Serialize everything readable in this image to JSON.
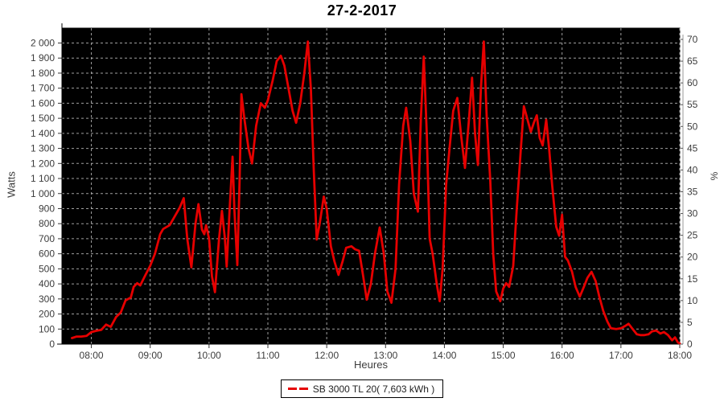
{
  "title": "27-2-2017",
  "legend": {
    "label": "SB 3000 TL 20( 7,603 kWh )",
    "marker_color": "#e60000"
  },
  "colors": {
    "page_background": "#ffffff",
    "plot_background": "#000000",
    "grid": "#bdbdbd",
    "series_line": "#e60000",
    "axis_text": "#3c3c3c",
    "axis_line": "#000000"
  },
  "chart_data": {
    "type": "line",
    "title": "27-2-2017",
    "xlabel": "Heures",
    "ylabel": "Watts",
    "y2label": "%",
    "grid": true,
    "legend_position": "bottom",
    "x_range": [
      7.5,
      18
    ],
    "y_range": [
      0,
      2000
    ],
    "y2_range": [
      0,
      70
    ],
    "x_tick_values": [
      8,
      9,
      10,
      11,
      12,
      13,
      14,
      15,
      16,
      17,
      18
    ],
    "x_ticks": [
      "08:00",
      "09:00",
      "10:00",
      "11:00",
      "12:00",
      "13:00",
      "14:00",
      "15:00",
      "16:00",
      "17:00",
      "18:00"
    ],
    "y_ticks": [
      "0",
      "100",
      "200",
      "300",
      "400",
      "500",
      "600",
      "700",
      "800",
      "900",
      "1 000",
      "1 100",
      "1 200",
      "1 300",
      "1 400",
      "1 500",
      "1 600",
      "1 700",
      "1 800",
      "1 900",
      "2 000"
    ],
    "y2_ticks": [
      "0",
      "5",
      "10",
      "15",
      "20",
      "25",
      "30",
      "35",
      "40",
      "45",
      "50",
      "55",
      "60",
      "65",
      "70"
    ],
    "series": [
      {
        "name": "SB 3000 TL 20",
        "energy_label": "7,603 kWh",
        "color": "#e60000",
        "points": [
          [
            7.67,
            40
          ],
          [
            7.75,
            50
          ],
          [
            7.83,
            50
          ],
          [
            7.92,
            55
          ],
          [
            8.0,
            80
          ],
          [
            8.08,
            88
          ],
          [
            8.17,
            95
          ],
          [
            8.25,
            130
          ],
          [
            8.33,
            115
          ],
          [
            8.42,
            180
          ],
          [
            8.5,
            210
          ],
          [
            8.58,
            290
          ],
          [
            8.67,
            310
          ],
          [
            8.72,
            380
          ],
          [
            8.78,
            405
          ],
          [
            8.83,
            390
          ],
          [
            8.92,
            460
          ],
          [
            9.0,
            520
          ],
          [
            9.08,
            600
          ],
          [
            9.17,
            730
          ],
          [
            9.22,
            765
          ],
          [
            9.33,
            790
          ],
          [
            9.42,
            850
          ],
          [
            9.5,
            905
          ],
          [
            9.57,
            970
          ],
          [
            9.63,
            700
          ],
          [
            9.7,
            510
          ],
          [
            9.77,
            800
          ],
          [
            9.82,
            930
          ],
          [
            9.88,
            760
          ],
          [
            9.92,
            730
          ],
          [
            9.95,
            790
          ],
          [
            10.0,
            700
          ],
          [
            10.05,
            450
          ],
          [
            10.1,
            345
          ],
          [
            10.17,
            700
          ],
          [
            10.22,
            885
          ],
          [
            10.27,
            700
          ],
          [
            10.3,
            515
          ],
          [
            10.35,
            900
          ],
          [
            10.4,
            1245
          ],
          [
            10.43,
            900
          ],
          [
            10.48,
            525
          ],
          [
            10.52,
            1100
          ],
          [
            10.55,
            1660
          ],
          [
            10.6,
            1500
          ],
          [
            10.67,
            1300
          ],
          [
            10.73,
            1200
          ],
          [
            10.8,
            1450
          ],
          [
            10.88,
            1600
          ],
          [
            10.95,
            1570
          ],
          [
            11.0,
            1620
          ],
          [
            11.08,
            1750
          ],
          [
            11.15,
            1880
          ],
          [
            11.22,
            1915
          ],
          [
            11.28,
            1850
          ],
          [
            11.35,
            1700
          ],
          [
            11.42,
            1550
          ],
          [
            11.48,
            1470
          ],
          [
            11.55,
            1600
          ],
          [
            11.62,
            1800
          ],
          [
            11.68,
            2010
          ],
          [
            11.73,
            1700
          ],
          [
            11.78,
            1150
          ],
          [
            11.83,
            695
          ],
          [
            11.88,
            800
          ],
          [
            11.95,
            980
          ],
          [
            12.0,
            900
          ],
          [
            12.07,
            650
          ],
          [
            12.13,
            550
          ],
          [
            12.2,
            460
          ],
          [
            12.27,
            550
          ],
          [
            12.33,
            640
          ],
          [
            12.42,
            650
          ],
          [
            12.48,
            630
          ],
          [
            12.55,
            620
          ],
          [
            12.62,
            450
          ],
          [
            12.68,
            295
          ],
          [
            12.75,
            400
          ],
          [
            12.82,
            600
          ],
          [
            12.9,
            775
          ],
          [
            12.97,
            600
          ],
          [
            13.03,
            350
          ],
          [
            13.1,
            275
          ],
          [
            13.17,
            500
          ],
          [
            13.23,
            1060
          ],
          [
            13.3,
            1450
          ],
          [
            13.35,
            1570
          ],
          [
            13.42,
            1350
          ],
          [
            13.48,
            1000
          ],
          [
            13.55,
            880
          ],
          [
            13.6,
            1500
          ],
          [
            13.65,
            1910
          ],
          [
            13.7,
            1400
          ],
          [
            13.75,
            700
          ],
          [
            13.8,
            600
          ],
          [
            13.87,
            400
          ],
          [
            13.92,
            285
          ],
          [
            13.97,
            500
          ],
          [
            14.03,
            1060
          ],
          [
            14.1,
            1350
          ],
          [
            14.15,
            1550
          ],
          [
            14.22,
            1635
          ],
          [
            14.28,
            1400
          ],
          [
            14.35,
            1170
          ],
          [
            14.42,
            1500
          ],
          [
            14.47,
            1770
          ],
          [
            14.52,
            1400
          ],
          [
            14.57,
            1190
          ],
          [
            14.62,
            1700
          ],
          [
            14.67,
            2010
          ],
          [
            14.72,
            1500
          ],
          [
            14.78,
            1080
          ],
          [
            14.83,
            600
          ],
          [
            14.88,
            350
          ],
          [
            14.95,
            285
          ],
          [
            15.0,
            370
          ],
          [
            15.05,
            405
          ],
          [
            15.1,
            380
          ],
          [
            15.17,
            520
          ],
          [
            15.23,
            900
          ],
          [
            15.3,
            1300
          ],
          [
            15.35,
            1580
          ],
          [
            15.42,
            1480
          ],
          [
            15.47,
            1410
          ],
          [
            15.52,
            1470
          ],
          [
            15.57,
            1520
          ],
          [
            15.62,
            1370
          ],
          [
            15.67,
            1320
          ],
          [
            15.73,
            1490
          ],
          [
            15.78,
            1300
          ],
          [
            15.83,
            1060
          ],
          [
            15.9,
            780
          ],
          [
            15.95,
            720
          ],
          [
            16.0,
            860
          ],
          [
            16.05,
            580
          ],
          [
            16.1,
            555
          ],
          [
            16.17,
            480
          ],
          [
            16.23,
            380
          ],
          [
            16.3,
            315
          ],
          [
            16.37,
            380
          ],
          [
            16.43,
            440
          ],
          [
            16.5,
            480
          ],
          [
            16.57,
            420
          ],
          [
            16.63,
            320
          ],
          [
            16.7,
            220
          ],
          [
            16.77,
            150
          ],
          [
            16.83,
            105
          ],
          [
            16.92,
            100
          ],
          [
            17.0,
            105
          ],
          [
            17.07,
            120
          ],
          [
            17.13,
            135
          ],
          [
            17.2,
            100
          ],
          [
            17.27,
            65
          ],
          [
            17.33,
            60
          ],
          [
            17.4,
            60
          ],
          [
            17.47,
            65
          ],
          [
            17.53,
            85
          ],
          [
            17.6,
            90
          ],
          [
            17.67,
            70
          ],
          [
            17.73,
            80
          ],
          [
            17.8,
            60
          ],
          [
            17.87,
            25
          ],
          [
            17.92,
            45
          ],
          [
            17.97,
            10
          ],
          [
            18.0,
            5
          ]
        ]
      }
    ]
  }
}
